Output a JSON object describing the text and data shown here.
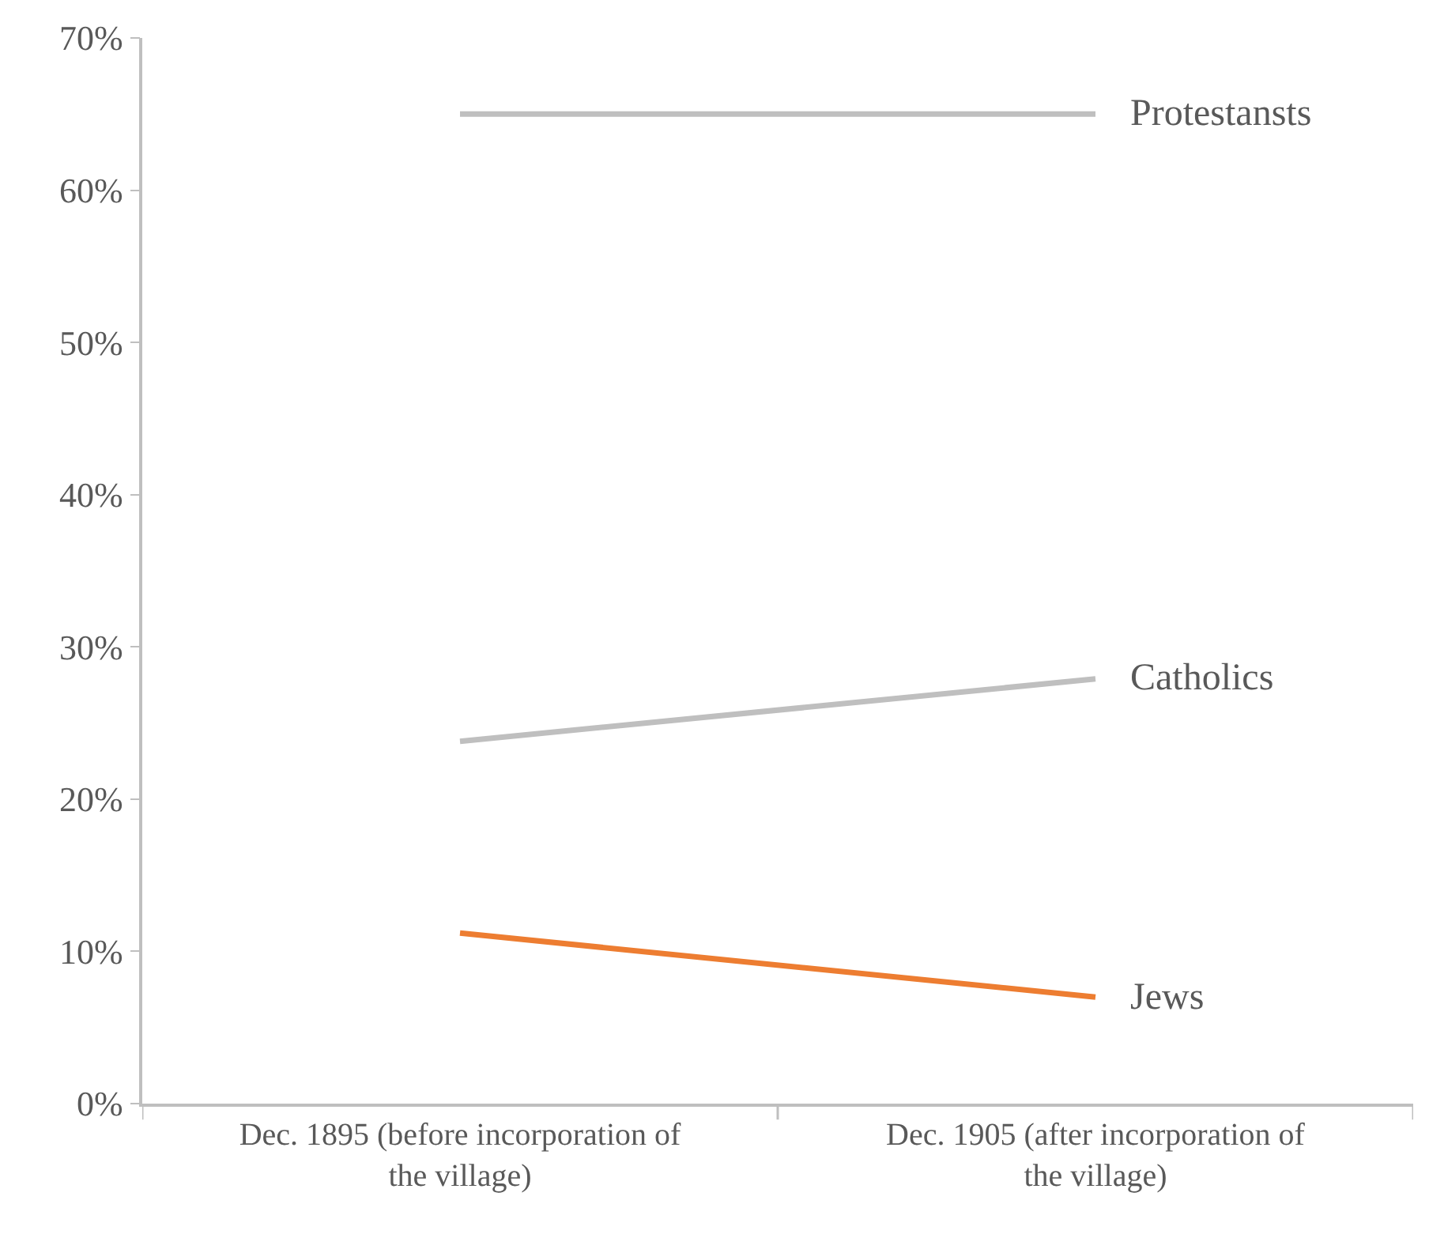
{
  "chart_data": {
    "type": "line",
    "categories": [
      "Dec. 1895 (before incorporation of the village)",
      "Dec. 1905 (after incorporation of the village)"
    ],
    "series": [
      {
        "name": "Protestansts",
        "color": "#bfbfbf",
        "values": [
          65.0,
          65.0
        ]
      },
      {
        "name": "Catholics",
        "color": "#bfbfbf",
        "values": [
          23.8,
          27.9
        ]
      },
      {
        "name": "Jews",
        "color": "#ed7d31",
        "values": [
          11.2,
          7.0
        ]
      }
    ],
    "ylim": [
      0,
      70
    ],
    "yticks": [
      {
        "value": 0,
        "label": "0%"
      },
      {
        "value": 10,
        "label": "10%"
      },
      {
        "value": 20,
        "label": "20%"
      },
      {
        "value": 30,
        "label": "30%"
      },
      {
        "value": 40,
        "label": "40%"
      },
      {
        "value": 50,
        "label": "50%"
      },
      {
        "value": 60,
        "label": "60%"
      },
      {
        "value": 70,
        "label": "70%"
      }
    ],
    "legend": false,
    "marker": "none",
    "line_style": "solid"
  }
}
